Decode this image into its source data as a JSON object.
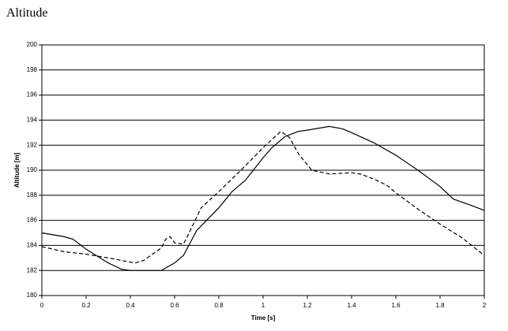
{
  "chart_data": {
    "type": "line",
    "title": "Altitude",
    "x_label": "Time [s]",
    "y_label": "Altitude [m]",
    "xlim": [
      0,
      2
    ],
    "xticks": [
      0,
      0.2,
      0.4,
      0.6,
      0.8,
      1,
      1.2,
      1.4,
      1.6,
      1.8,
      2
    ],
    "ylim": [
      180,
      200
    ],
    "yticks": [
      180,
      182,
      184,
      186,
      188,
      190,
      192,
      194,
      196,
      198,
      200
    ],
    "grid": true,
    "series": [
      {
        "color": "#000000",
        "style": "solid",
        "x": [
          0,
          0.1,
          0.14,
          0.2,
          0.3,
          0.36,
          0.4,
          0.5,
          0.54,
          0.6,
          0.64,
          0.7,
          0.8,
          0.86,
          0.92,
          1.0,
          1.04,
          1.1,
          1.16,
          1.2,
          1.3,
          1.36,
          1.4,
          1.5,
          1.6,
          1.7,
          1.8,
          1.86,
          1.94,
          2.0
        ],
        "values": [
          185,
          184.7,
          184.5,
          183.7,
          182.6,
          182.1,
          182,
          182,
          182,
          182.6,
          183.2,
          185.2,
          187,
          188.3,
          189.2,
          191,
          191.8,
          192.7,
          193.1,
          193.2,
          193.5,
          193.3,
          193,
          192.2,
          191.2,
          190,
          188.7,
          187.7,
          187.2,
          186.8
        ]
      },
      {
        "color": "#000000",
        "style": "dashed",
        "x": [
          0,
          0.1,
          0.2,
          0.3,
          0.36,
          0.42,
          0.46,
          0.54,
          0.56,
          0.58,
          0.6,
          0.64,
          0.66,
          0.72,
          0.8,
          0.9,
          1.0,
          1.08,
          1.12,
          1.16,
          1.22,
          1.3,
          1.4,
          1.44,
          1.5,
          1.56,
          1.6,
          1.7,
          1.8,
          1.9,
          2.0
        ],
        "values": [
          183.9,
          183.5,
          183.3,
          183,
          182.8,
          182.6,
          182.8,
          183.8,
          184.5,
          184.7,
          184.2,
          184.1,
          184.8,
          187,
          188.3,
          190,
          191.8,
          193.1,
          192.6,
          191.3,
          190,
          189.7,
          189.8,
          189.7,
          189.3,
          188.8,
          188.2,
          186.9,
          185.7,
          184.6,
          183.2
        ]
      }
    ]
  }
}
